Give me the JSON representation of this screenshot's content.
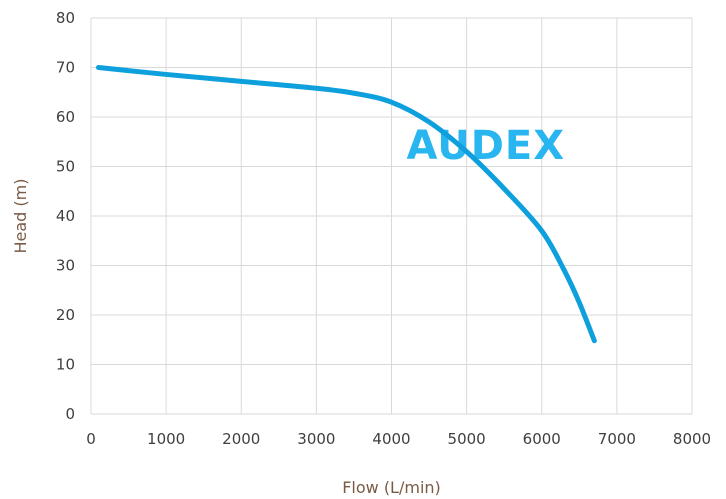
{
  "chart_data": {
    "type": "line",
    "xlabel": "Flow (L/min)",
    "ylabel": "Head (m)",
    "xlim": [
      0,
      8000
    ],
    "ylim": [
      0,
      80
    ],
    "x_ticks": [
      "0",
      "1000",
      "2000",
      "3000",
      "4000",
      "5000",
      "6000",
      "7000",
      "8000"
    ],
    "y_ticks": [
      "0",
      "10",
      "20",
      "30",
      "40",
      "50",
      "60",
      "70",
      "80"
    ],
    "grid": true,
    "series": [
      {
        "color": "#0ea0dc",
        "x": [
          100,
          1000,
          2000,
          3000,
          3500,
          4000,
          4500,
          5000,
          5500,
          6000,
          6300,
          6500,
          6700
        ],
        "y": [
          70,
          68.6,
          67.2,
          65.8,
          64.8,
          63.0,
          59.0,
          53.0,
          45.5,
          37.0,
          29.0,
          22.5,
          14.8
        ]
      }
    ],
    "watermark": {
      "text": "AUDEX",
      "color": "#29b6f0"
    }
  }
}
